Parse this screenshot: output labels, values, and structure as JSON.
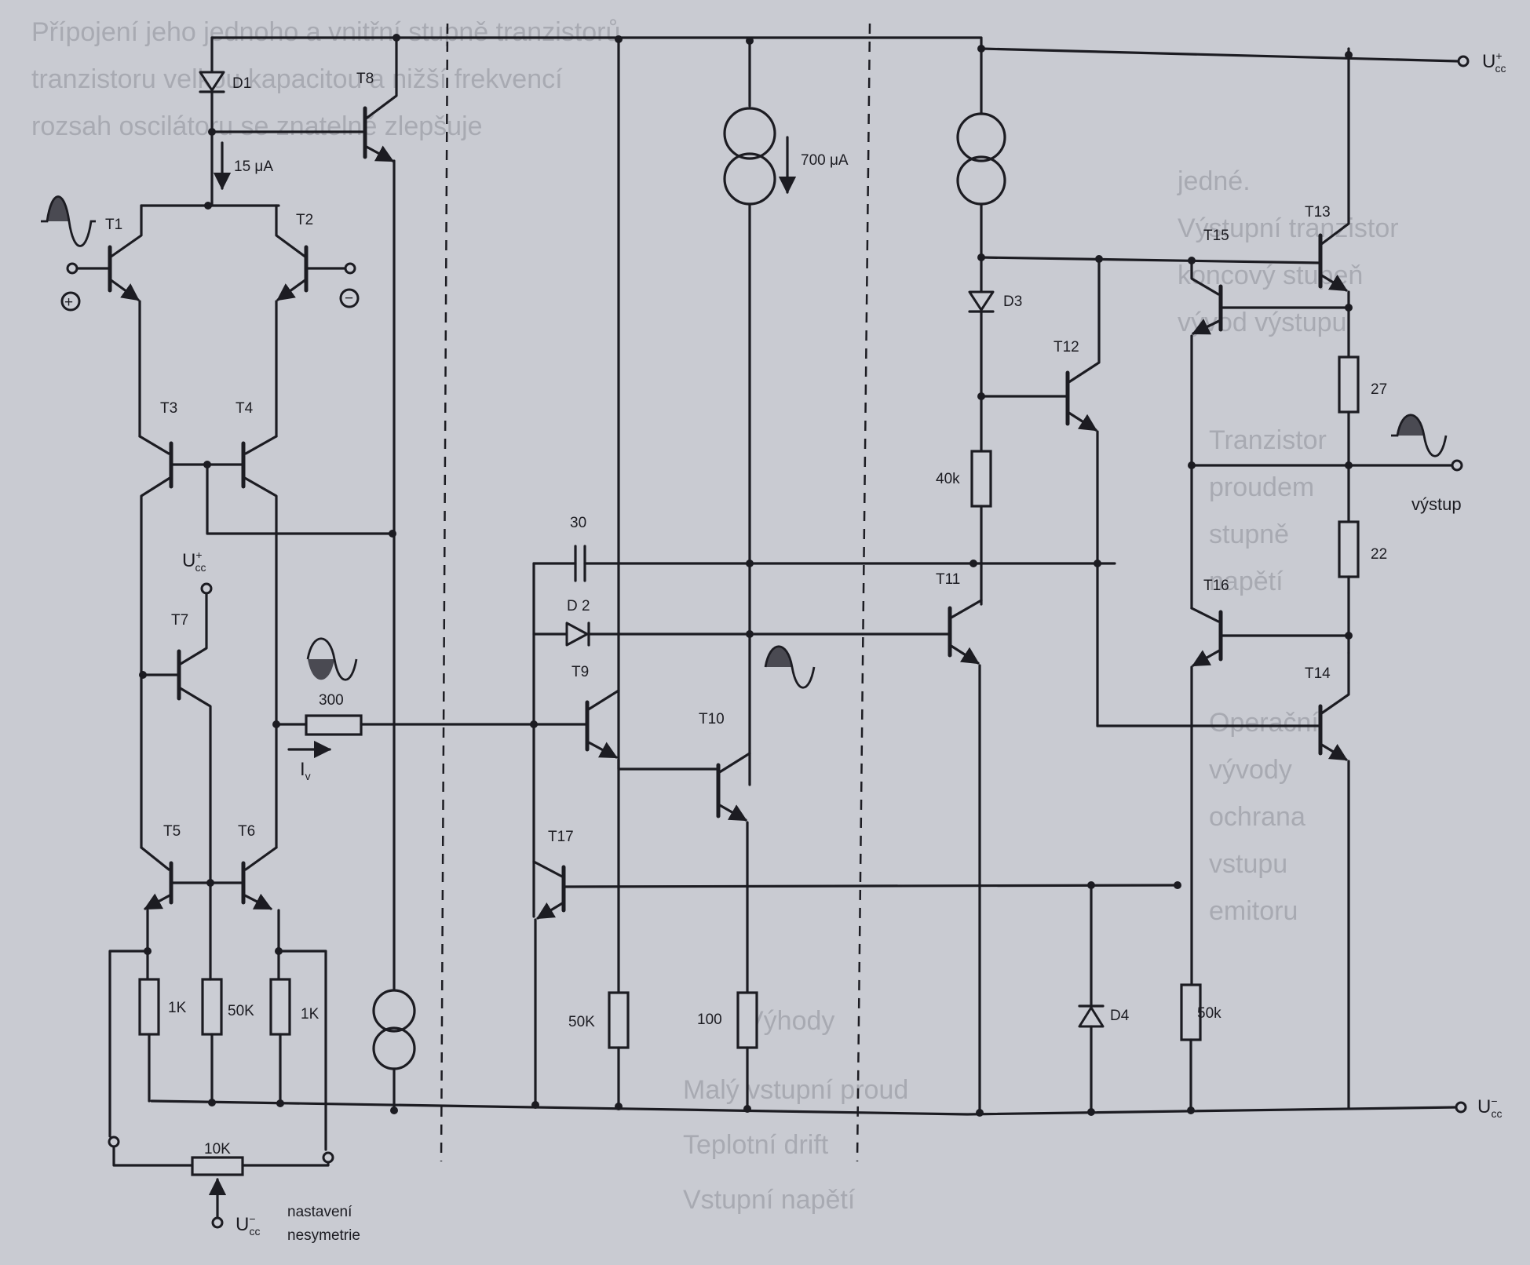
{
  "labels": {
    "D1": "D1",
    "T8": "T8",
    "current_15": "15 μA",
    "T1": "T1",
    "T2": "T2",
    "plus": "+",
    "minus": "−",
    "T3": "T3",
    "T4": "T4",
    "ucc_plus": "U",
    "ucc_plus_sup": "+",
    "ucc_plus_sub": "cc",
    "T7": "T7",
    "r300": "300",
    "iv": "I",
    "iv_sub": "v",
    "T5": "T5",
    "T6": "T6",
    "r1k_left": "1K",
    "r50k_left": "50K",
    "r1k_right": "1K",
    "r10k": "10K",
    "ucc_minus": "U",
    "ucc_minus_sup": "−",
    "ucc_minus_sub": "cc",
    "nastaveni": "nastavení",
    "nesymetrie": "nesymetrie",
    "current_700": "700 μA",
    "c30": "30",
    "D2": "D 2",
    "T9": "T9",
    "T10": "T10",
    "T17": "T17",
    "r50k_mid": "50K",
    "r100": "100",
    "D3": "D3",
    "T12": "T12",
    "r40k": "40k",
    "T11": "T11",
    "T15": "T15",
    "T13": "T13",
    "r27": "27",
    "vystup": "výstup",
    "r22": "22",
    "T16": "T16",
    "T14": "T14",
    "D4": "D4",
    "r50k_right": "50k"
  },
  "colors": {
    "ink": "#1c1c22",
    "paper": "#c9cbd2"
  }
}
